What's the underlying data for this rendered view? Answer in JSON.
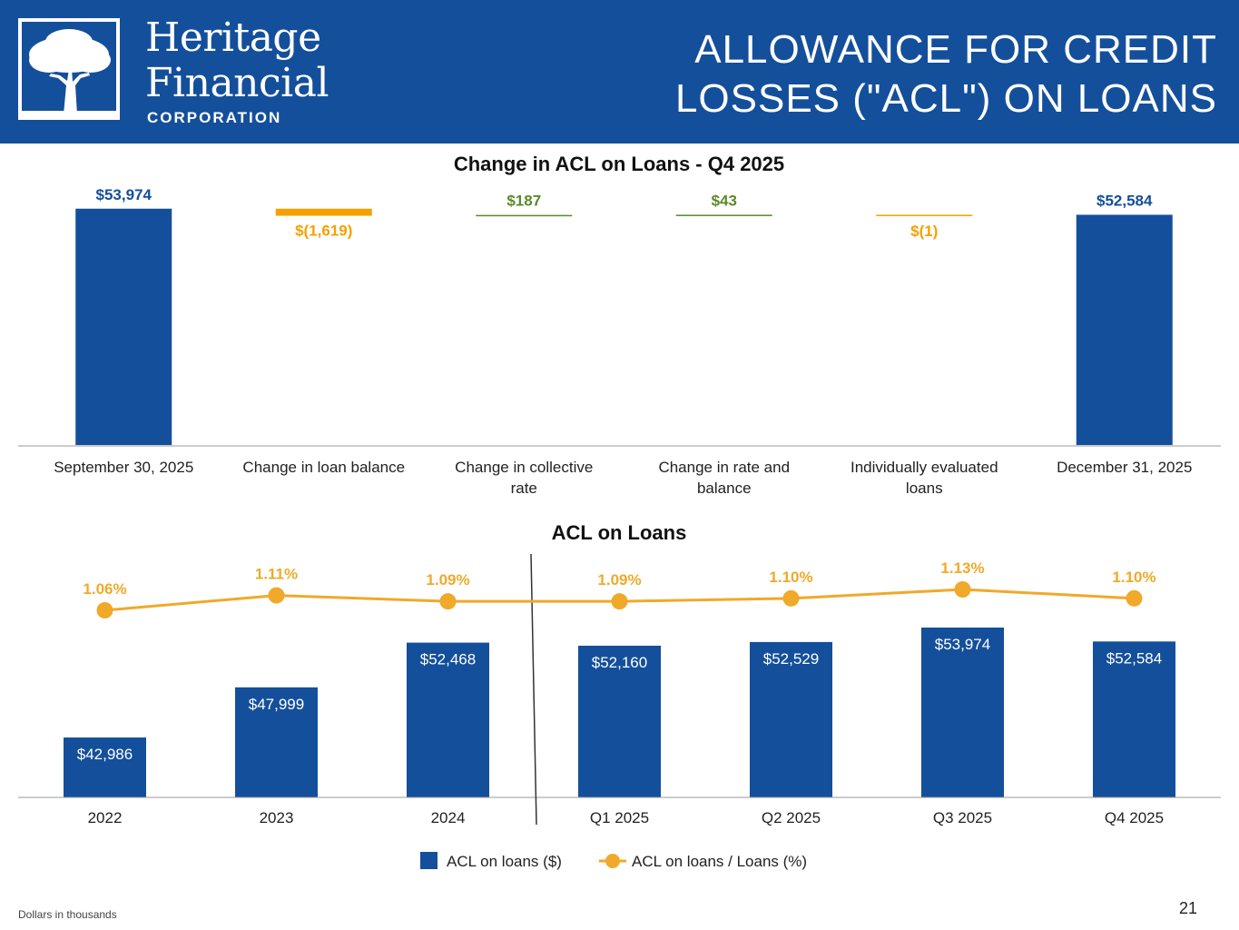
{
  "header": {
    "logo": {
      "line1": "Heritage",
      "line2": "Financial",
      "sub": "CORPORATION"
    },
    "title_line1": "ALLOWANCE FOR CREDIT",
    "title_line2": "LOSSES (\"ACL\") ON LOANS"
  },
  "colors": {
    "navy": "#144f9b",
    "orange": "#f5a100",
    "green": "#5a8a2a",
    "line_orange": "#f0a92a",
    "axis": "#9a9a9a"
  },
  "chart_data": [
    {
      "type": "bar",
      "subtype": "waterfall",
      "title": "Change in ACL on Loans - Q4 2025",
      "categories": [
        [
          "September 30, 2025"
        ],
        [
          "Change in loan balance"
        ],
        [
          "Change in collective",
          "rate"
        ],
        [
          "Change in rate and",
          "balance"
        ],
        [
          "Individually evaluated",
          "loans"
        ],
        [
          "December 31, 2025"
        ]
      ],
      "values": [
        53974,
        -1619,
        187,
        43,
        -1,
        52584
      ],
      "kinds": [
        "total",
        "decrease",
        "increase",
        "increase",
        "decrease",
        "total"
      ],
      "data_labels": [
        "$53,974",
        "$(1,619)",
        "$187",
        "$43",
        "$(1)",
        "$52,584"
      ],
      "ylim": [
        0,
        56000
      ],
      "legend": "none"
    },
    {
      "type": "bar",
      "subtype": "bar_line_combo",
      "title": "ACL on Loans",
      "categories": [
        "2022",
        "2023",
        "2024",
        "Q1 2025",
        "Q2 2025",
        "Q3 2025",
        "Q4 2025"
      ],
      "series": [
        {
          "name": "ACL on loans ($)",
          "type": "bar",
          "values": [
            42986,
            47999,
            52468,
            52160,
            52529,
            53974,
            52584
          ],
          "labels": [
            "$42,986",
            "$47,999",
            "$52,468",
            "$52,160",
            "$52,529",
            "$53,974",
            "$52,584"
          ]
        },
        {
          "name": "ACL on loans / Loans (%)",
          "type": "line",
          "values": [
            1.06,
            1.11,
            1.09,
            1.09,
            1.1,
            1.13,
            1.1
          ],
          "labels": [
            "1.06%",
            "1.11%",
            "1.09%",
            "1.09%",
            "1.10%",
            "1.13%",
            "1.10%"
          ]
        }
      ],
      "divider_after_category": "2024",
      "legend": "bottom-center"
    }
  ],
  "footer": {
    "note": "Dollars in thousands",
    "page_number": "21"
  }
}
